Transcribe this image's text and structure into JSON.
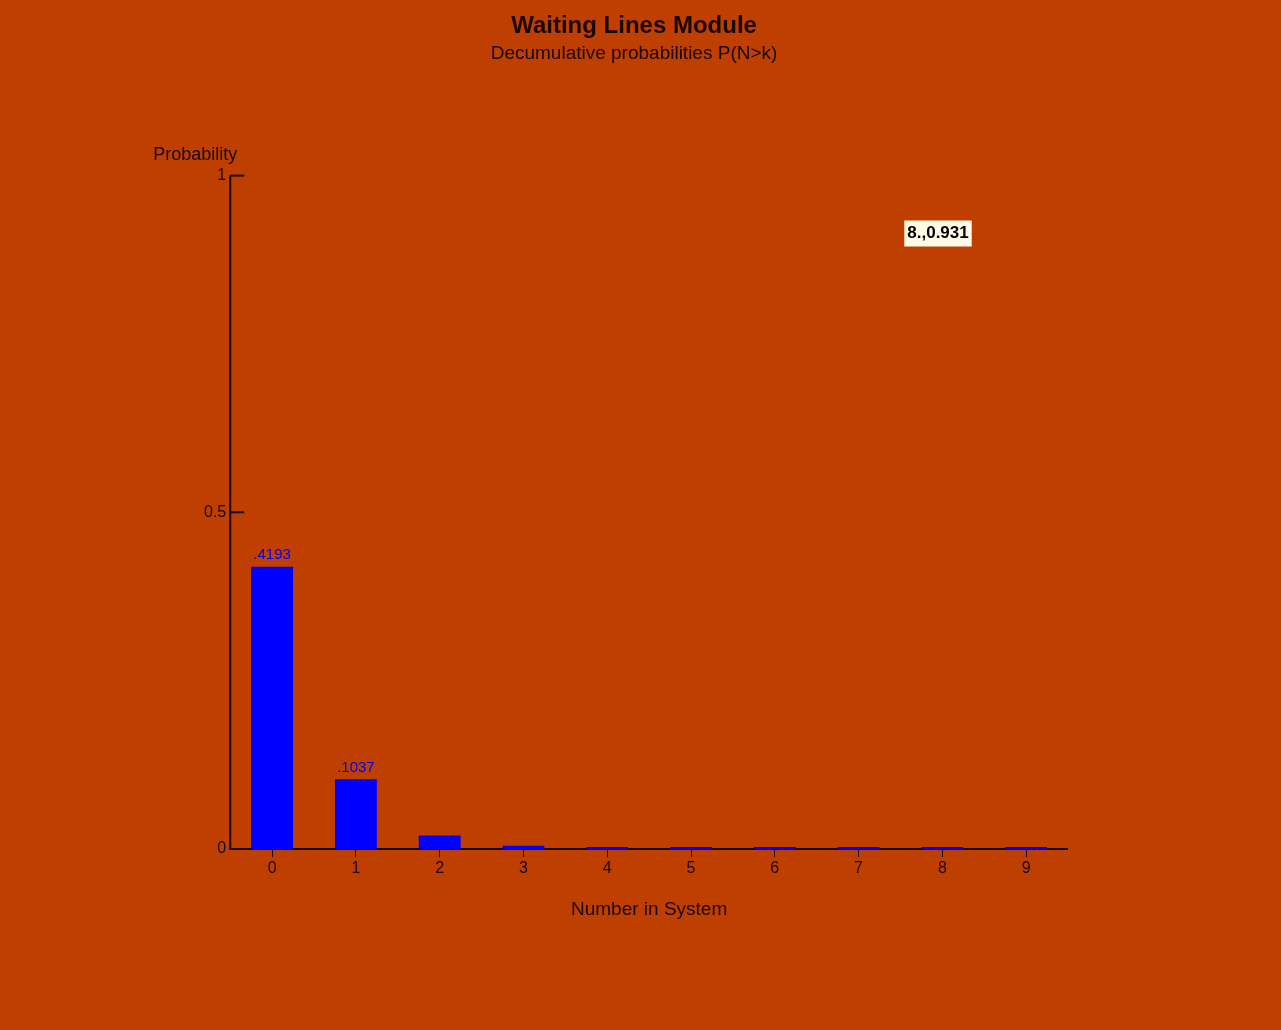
{
  "chart_data": {
    "type": "bar",
    "title": "Waiting Lines Module",
    "subtitle": "Decumulative probabilities P(N>k)",
    "xlabel": "Number in System",
    "ylabel": "Probability",
    "categories": [
      "0",
      "1",
      "2",
      "3",
      "4",
      "5",
      "6",
      "7",
      "8",
      "9"
    ],
    "values": [
      0.4193,
      0.1037,
      0.02,
      0.005,
      0.003,
      0.003,
      0.003,
      0.003,
      0.003,
      0.003
    ],
    "value_labels": [
      ".4193",
      ".1037",
      null,
      null,
      null,
      null,
      null,
      null,
      null,
      null
    ],
    "color": "#0000ff",
    "ylim": [
      0,
      1
    ],
    "yticks": [
      0,
      0.5,
      1
    ],
    "grid": false,
    "legend": false,
    "annotations": [
      "8.,0.931"
    ]
  }
}
